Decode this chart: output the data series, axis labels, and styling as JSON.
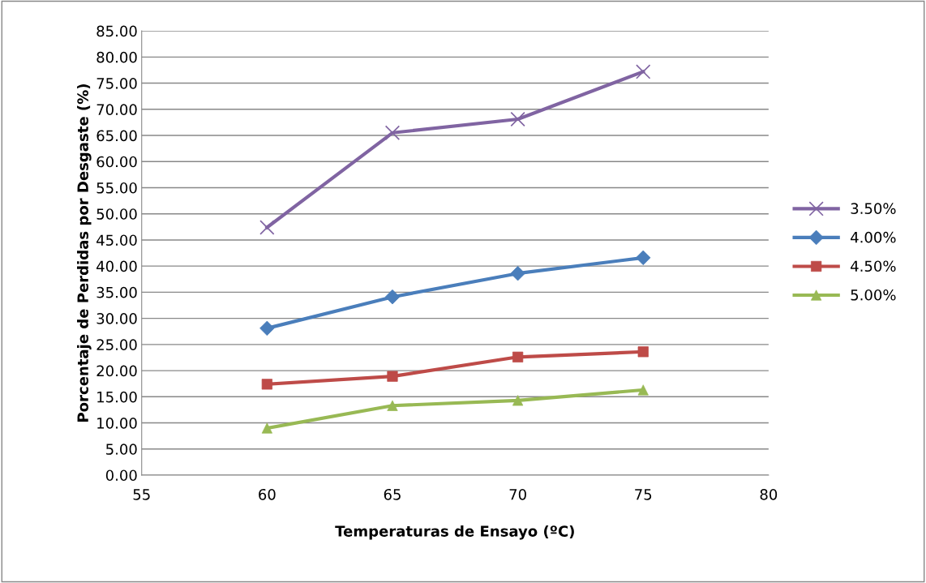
{
  "chart_data": {
    "type": "line",
    "xlabel": "Temperaturas de Ensayo (ºC)",
    "ylabel": "Porcentaje de Perdidas por Desgaste (%)",
    "xlim": [
      55,
      80
    ],
    "xticks": [
      55,
      60,
      65,
      70,
      75,
      80
    ],
    "ylim": [
      0,
      85
    ],
    "yticks": [
      {
        "value": 0,
        "label": "0.00"
      },
      {
        "value": 5,
        "label": "5.00"
      },
      {
        "value": 10,
        "label": "10.00"
      },
      {
        "value": 15,
        "label": "15.00"
      },
      {
        "value": 20,
        "label": "20.00"
      },
      {
        "value": 25,
        "label": "25.00"
      },
      {
        "value": 30,
        "label": "30.00"
      },
      {
        "value": 35,
        "label": "35.00"
      },
      {
        "value": 40,
        "label": "40.00"
      },
      {
        "value": 45,
        "label": "45.00"
      },
      {
        "value": 50,
        "label": "50.00"
      },
      {
        "value": 55,
        "label": "55.00"
      },
      {
        "value": 60,
        "label": "60.00"
      },
      {
        "value": 65,
        "label": "65.00"
      },
      {
        "value": 70,
        "label": "70.00"
      },
      {
        "value": 75,
        "label": "75.00"
      },
      {
        "value": 80,
        "label": "80.00"
      },
      {
        "value": 85,
        "label": "85.00"
      }
    ],
    "x": [
      60,
      65,
      70,
      75
    ],
    "grid": "y",
    "legend": "right",
    "series": [
      {
        "name": "3.50%",
        "color": "#8064a2",
        "marker": "cross",
        "values": [
          47.4,
          65.5,
          68.1,
          77.2
        ]
      },
      {
        "name": "4.00%",
        "color": "#4a7ebb",
        "marker": "diamond",
        "values": [
          28.1,
          34.1,
          38.6,
          41.6
        ]
      },
      {
        "name": "4.50%",
        "color": "#be4b48",
        "marker": "square",
        "values": [
          17.4,
          18.9,
          22.6,
          23.6
        ]
      },
      {
        "name": "5.00%",
        "color": "#98b954",
        "marker": "triangle",
        "values": [
          9.0,
          13.3,
          14.3,
          16.3
        ]
      }
    ]
  }
}
